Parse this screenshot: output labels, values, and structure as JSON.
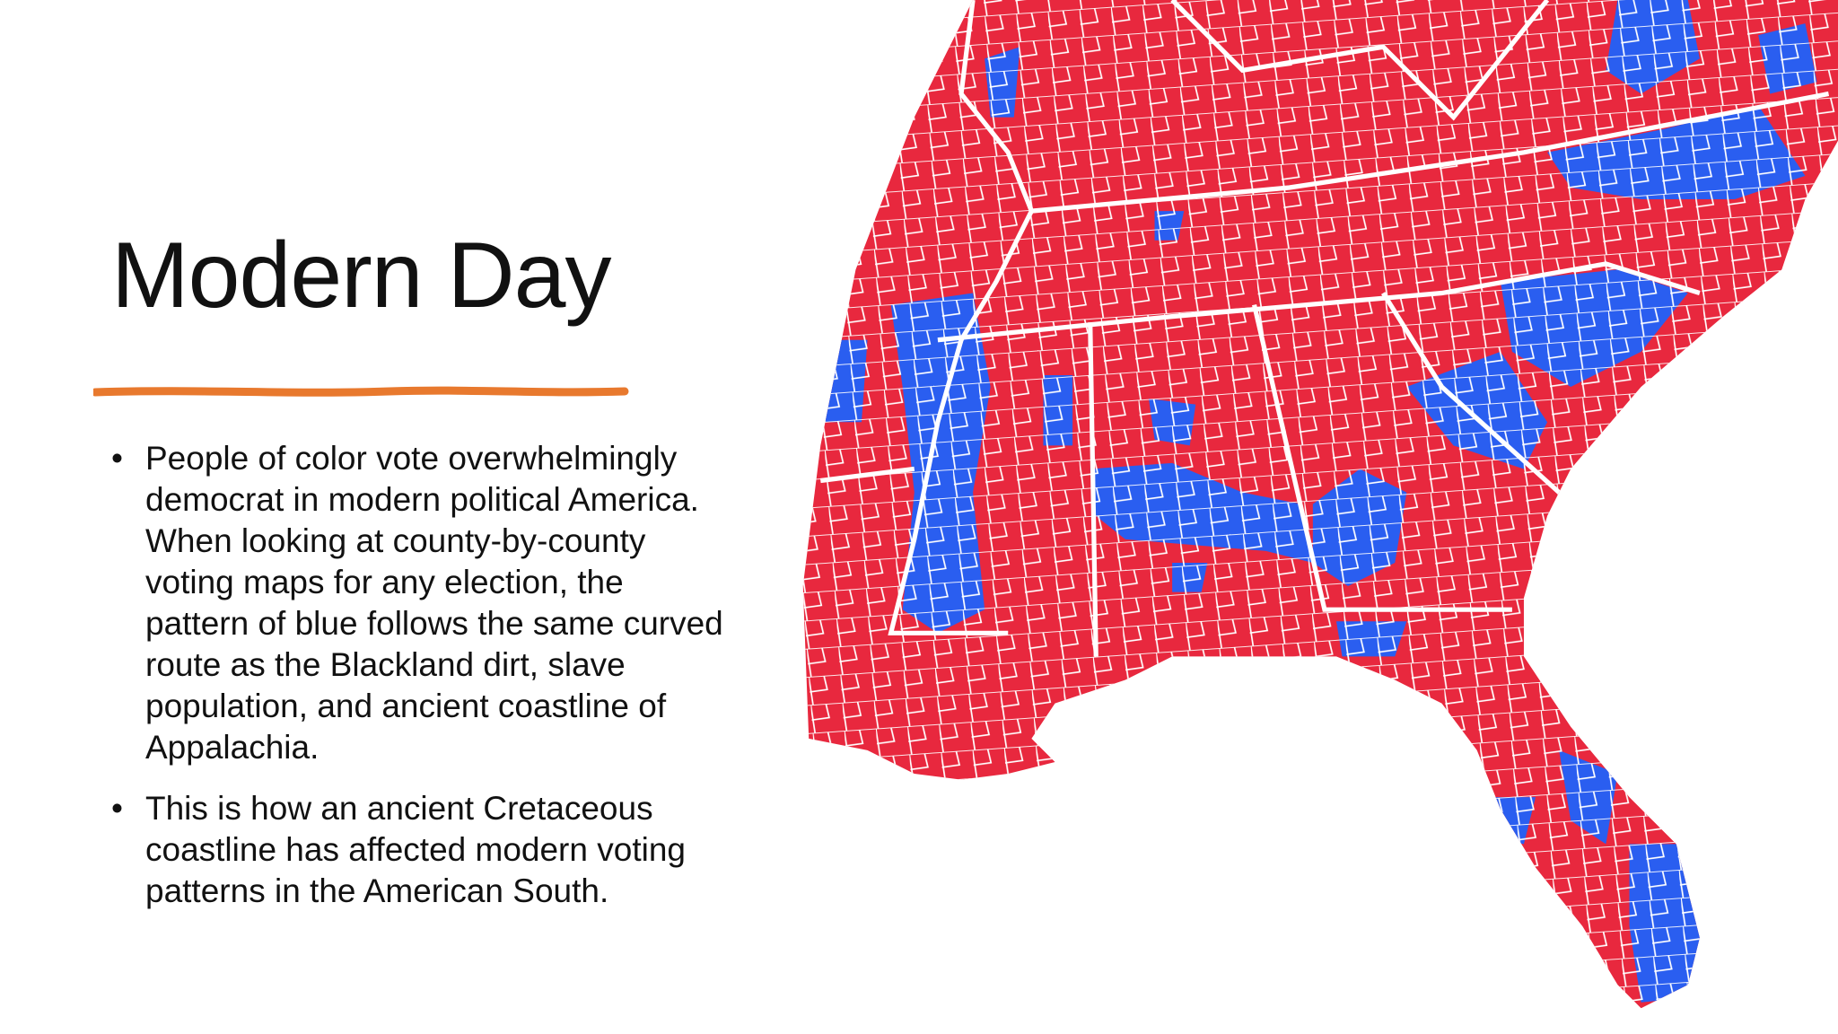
{
  "title": "Modern Day",
  "bullets": [
    "People of color vote overwhelmingly democrat in modern political America. When looking at county-by-county voting maps for any election, the pattern of blue follows the same curved route as the Blackland dirt, slave population, and ancient coastline of Appalachia.",
    "This is how an ancient Cretaceous coastline has affected modern voting patterns in the American South."
  ]
}
